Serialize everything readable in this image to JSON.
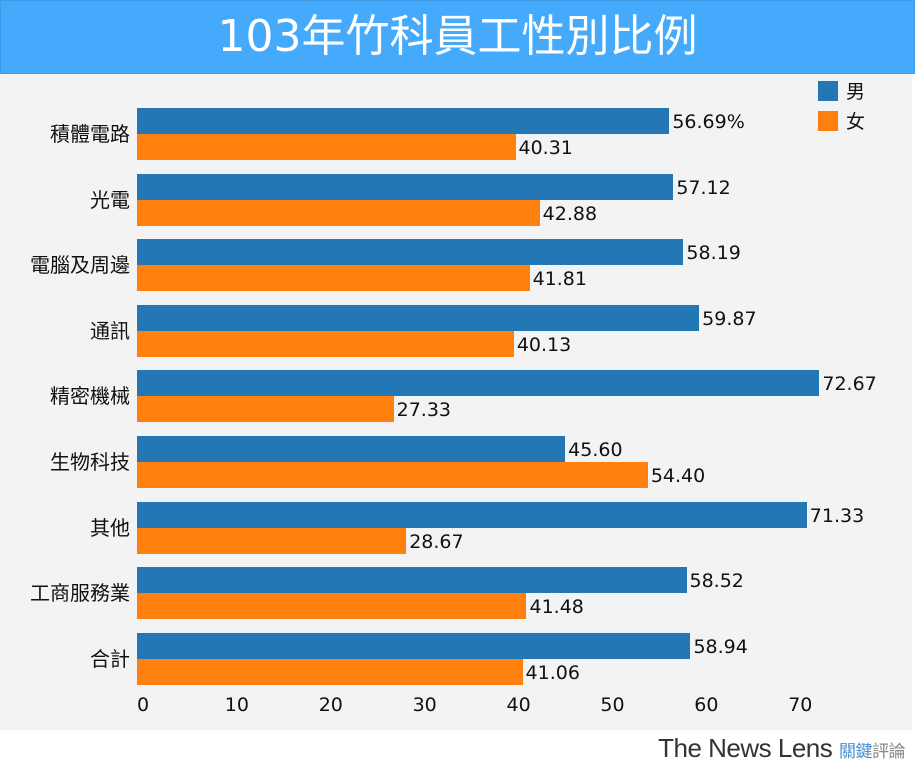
{
  "chart_data": {
    "type": "bar",
    "orientation": "horizontal",
    "title": "103年竹科員工性別比例",
    "categories": [
      "積體電路",
      "光電",
      "電腦及周邊",
      "通訊",
      "精密機械",
      "生物科技",
      "其他",
      "工商服務業",
      "合計"
    ],
    "series": [
      {
        "name": "男",
        "color": "#2277b4",
        "values": [
          56.69,
          57.12,
          58.19,
          59.87,
          72.67,
          45.6,
          71.33,
          58.52,
          58.94
        ],
        "labels": [
          "56.69%",
          "57.12",
          "58.19",
          "59.87",
          "72.67",
          "45.60",
          "71.33",
          "58.52",
          "58.94"
        ]
      },
      {
        "name": "女",
        "color": "#ff800e",
        "values": [
          40.31,
          42.88,
          41.81,
          40.13,
          27.33,
          54.4,
          28.67,
          41.48,
          41.06
        ],
        "labels": [
          "40.31",
          "42.88",
          "41.81",
          "40.13",
          "27.33",
          "54.40",
          "28.67",
          "41.48",
          "41.06"
        ]
      }
    ],
    "xticks": [
      "0",
      "10",
      "20",
      "30",
      "40",
      "50",
      "60",
      "70"
    ],
    "xlim": [
      0,
      80
    ],
    "legend_position": "top-right",
    "grid": false
  },
  "footer": {
    "brand_en": "The News Lens",
    "brand_zh_1": "關鍵",
    "brand_zh_2": "評論"
  }
}
